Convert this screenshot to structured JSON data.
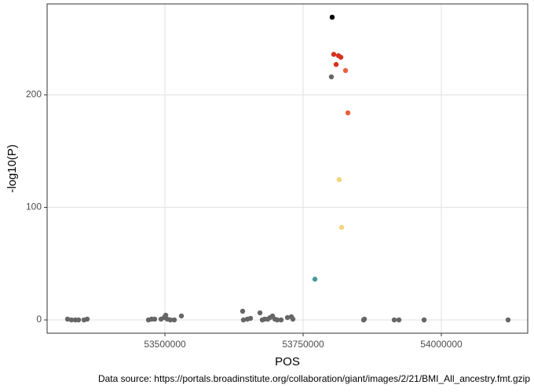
{
  "chart_data": {
    "type": "scatter",
    "xlabel": "POS",
    "ylabel": "-log10(P)",
    "caption": "Data source: https://portals.broadinstitute.org/collaboration/giant/images/2/21/BMI_All_ancestry.fmt.gzip",
    "xlim": [
      53286900,
      54156250
    ],
    "ylim": [
      -11.8,
      280.8
    ],
    "xticks": [
      53500000,
      53750000,
      54000000
    ],
    "yticks": [
      0,
      100,
      200
    ],
    "grid": true,
    "x": [
      53802500,
      53805400,
      53813900,
      53818200,
      53809700,
      53826700,
      53801100,
      53831000,
      53815300,
      53819600,
      53771300,
      53323900,
      53330900,
      53338000,
      53343800,
      53353700,
      53359400,
      53470200,
      53475900,
      53481500,
      53492900,
      53498600,
      53501400,
      53504300,
      53509900,
      53517000,
      53529800,
      53640600,
      53642000,
      53649100,
      53654800,
      53671900,
      53676100,
      53680400,
      53686100,
      53690300,
      53694600,
      53698900,
      53703100,
      53710200,
      53721600,
      53728700,
      53731500,
      53859400,
      53860800,
      53914800,
      53923300,
      53968800,
      54120800
    ],
    "y": [
      269,
      236,
      234.8,
      233.4,
      227,
      221.6,
      216,
      184,
      124.7,
      82.2,
      36.2,
      0.7,
      0,
      0,
      0,
      0,
      0.7,
      0,
      0.7,
      0.7,
      0.7,
      2.1,
      4.2,
      0.7,
      0,
      0,
      3.5,
      7.7,
      0,
      0.7,
      1.4,
      6.3,
      0,
      0.7,
      0.7,
      2.1,
      3.5,
      0.7,
      0,
      0,
      2.1,
      2.8,
      0.7,
      0,
      0.7,
      0,
      0,
      0,
      0
    ],
    "colors": [
      "#000000",
      "#d7301f",
      "#d7301f",
      "#d7301f",
      "#d7301f",
      "#e8603c",
      "#666666",
      "#e8603c",
      "#f6d67a",
      "#f6d67a",
      "#4a9b9b",
      "#666666",
      "#666666",
      "#666666",
      "#666666",
      "#666666",
      "#666666",
      "#666666",
      "#666666",
      "#666666",
      "#666666",
      "#666666",
      "#666666",
      "#666666",
      "#666666",
      "#666666",
      "#666666",
      "#666666",
      "#666666",
      "#666666",
      "#666666",
      "#666666",
      "#666666",
      "#666666",
      "#666666",
      "#666666",
      "#666666",
      "#666666",
      "#666666",
      "#666666",
      "#666666",
      "#666666",
      "#666666",
      "#666666",
      "#666666",
      "#666666",
      "#666666",
      "#666666",
      "#666666"
    ]
  }
}
